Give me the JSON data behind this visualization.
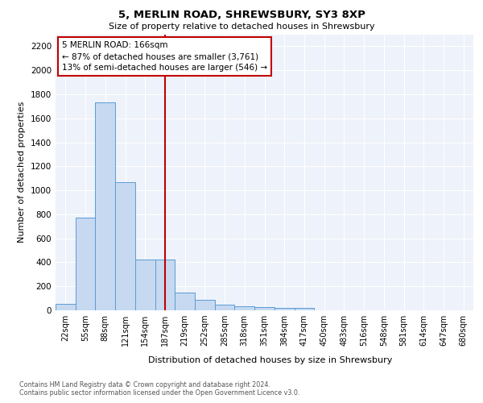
{
  "title": "5, MERLIN ROAD, SHREWSBURY, SY3 8XP",
  "subtitle": "Size of property relative to detached houses in Shrewsbury",
  "xlabel": "Distribution of detached houses by size in Shrewsbury",
  "ylabel": "Number of detached properties",
  "bar_labels": [
    "22sqm",
    "55sqm",
    "88sqm",
    "121sqm",
    "154sqm",
    "187sqm",
    "219sqm",
    "252sqm",
    "285sqm",
    "318sqm",
    "351sqm",
    "384sqm",
    "417sqm",
    "450sqm",
    "483sqm",
    "516sqm",
    "548sqm",
    "581sqm",
    "614sqm",
    "647sqm",
    "680sqm"
  ],
  "bar_values": [
    55,
    770,
    1730,
    1065,
    420,
    420,
    150,
    85,
    45,
    35,
    28,
    20,
    18,
    0,
    0,
    0,
    0,
    0,
    0,
    0,
    0
  ],
  "bar_color": "#c6d9f0",
  "bar_edge_color": "#5b9bd5",
  "vline_x": 5.0,
  "vline_color": "#c00000",
  "annotation_text": "5 MERLIN ROAD: 166sqm\n← 87% of detached houses are smaller (3,761)\n13% of semi-detached houses are larger (546) →",
  "annotation_box_color": "#ffffff",
  "annotation_box_edge": "#c00000",
  "ylim": [
    0,
    2300
  ],
  "yticks": [
    0,
    200,
    400,
    600,
    800,
    1000,
    1200,
    1400,
    1600,
    1800,
    2000,
    2200
  ],
  "footer_line1": "Contains HM Land Registry data © Crown copyright and database right 2024.",
  "footer_line2": "Contains public sector information licensed under the Open Government Licence v3.0.",
  "background_color": "#eef2fa",
  "grid_color": "#ffffff"
}
